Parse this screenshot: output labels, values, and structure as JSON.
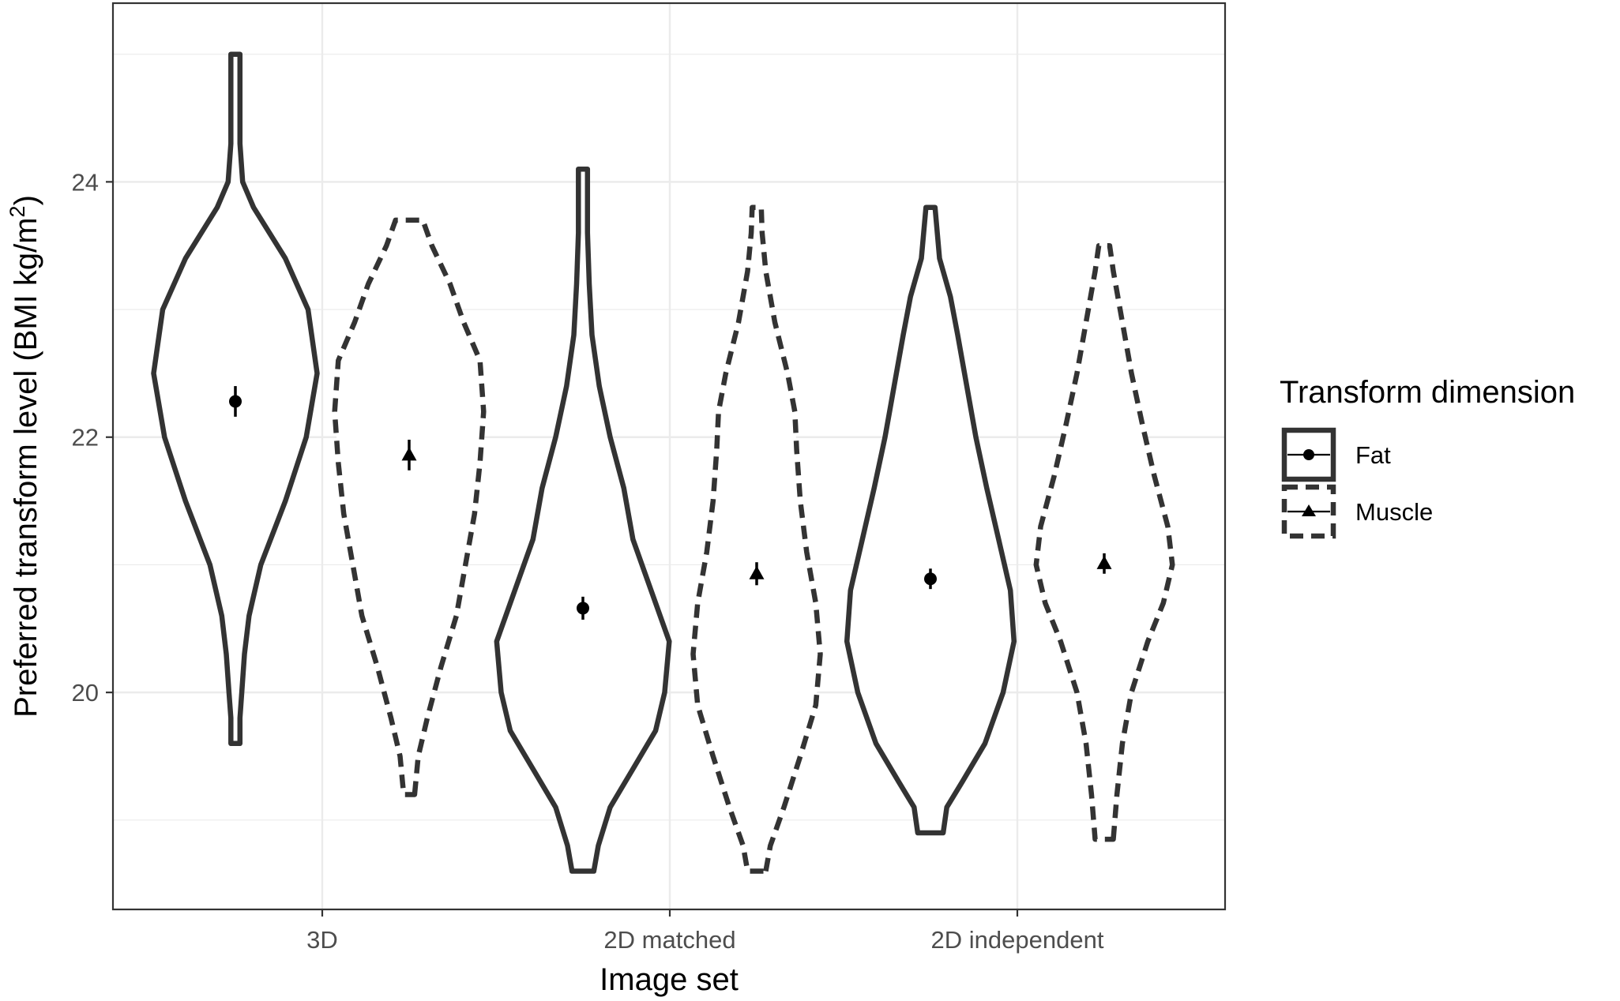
{
  "chart_data": {
    "type": "violin",
    "xlabel": "Image set",
    "ylabel": "Preferred transform level (BMI kg/m",
    "ylabel_superscript": "2",
    "ylabel_suffix": ")",
    "categories": [
      "3D",
      "2D matched",
      "2D independent"
    ],
    "ylim": [
      18.3,
      25.4
    ],
    "y_ticks": [
      20,
      22,
      24
    ],
    "grid": true,
    "legend": {
      "title": "Transform dimension",
      "position": "right",
      "entries": [
        "Fat",
        "Muscle"
      ]
    },
    "colors": {
      "outline": "#333333",
      "grid": "#ebebeb",
      "panel_border": "#333333",
      "point": "#000000"
    },
    "series": [
      {
        "name": "Fat",
        "linestyle": "solid",
        "marker": "circle",
        "means": [
          22.28,
          20.66,
          20.89
        ],
        "errors": [
          0.12,
          0.09,
          0.08
        ],
        "violins": [
          {
            "y": [
              19.6,
              19.8,
              20.0,
              20.3,
              20.6,
              21.0,
              21.5,
              22.0,
              22.5,
              23.0,
              23.4,
              23.8,
              24.0,
              24.3,
              24.7,
              25.0
            ],
            "w": [
              0.05,
              0.05,
              0.07,
              0.1,
              0.15,
              0.28,
              0.55,
              0.78,
              0.9,
              0.8,
              0.55,
              0.2,
              0.08,
              0.05,
              0.05,
              0.05
            ]
          },
          {
            "y": [
              18.6,
              18.8,
              19.1,
              19.4,
              19.7,
              20.0,
              20.4,
              20.8,
              21.2,
              21.6,
              22.0,
              22.4,
              22.8,
              23.2,
              23.6,
              24.1
            ],
            "w": [
              0.12,
              0.17,
              0.3,
              0.55,
              0.8,
              0.9,
              0.95,
              0.75,
              0.55,
              0.45,
              0.3,
              0.18,
              0.1,
              0.07,
              0.05,
              0.05
            ]
          },
          {
            "y": [
              18.9,
              19.1,
              19.3,
              19.6,
              20.0,
              20.4,
              20.8,
              21.2,
              21.6,
              22.0,
              22.4,
              22.8,
              23.1,
              23.4,
              23.8
            ],
            "w": [
              0.14,
              0.18,
              0.35,
              0.6,
              0.8,
              0.92,
              0.88,
              0.75,
              0.62,
              0.5,
              0.4,
              0.3,
              0.22,
              0.1,
              0.05
            ]
          }
        ]
      },
      {
        "name": "Muscle",
        "linestyle": "dashed",
        "marker": "triangle",
        "means": [
          21.86,
          20.93,
          21.01
        ],
        "errors": [
          0.12,
          0.09,
          0.08
        ],
        "violins": [
          {
            "y": [
              19.2,
              19.5,
              19.8,
              20.2,
              20.6,
              21.0,
              21.4,
              21.8,
              22.2,
              22.6,
              22.9,
              23.2,
              23.5,
              23.7
            ],
            "w": [
              0.06,
              0.1,
              0.2,
              0.35,
              0.52,
              0.62,
              0.72,
              0.78,
              0.82,
              0.78,
              0.6,
              0.45,
              0.25,
              0.15
            ]
          },
          {
            "y": [
              18.6,
              18.8,
              19.1,
              19.5,
              19.9,
              20.3,
              20.7,
              21.1,
              21.5,
              21.9,
              22.2,
              22.5,
              22.9,
              23.3,
              23.6,
              23.8
            ],
            "w": [
              0.1,
              0.15,
              0.3,
              0.48,
              0.65,
              0.7,
              0.65,
              0.55,
              0.48,
              0.44,
              0.42,
              0.34,
              0.2,
              0.1,
              0.06,
              0.05
            ]
          },
          {
            "y": [
              18.85,
              19.2,
              19.6,
              20.0,
              20.4,
              20.7,
              21.0,
              21.3,
              21.7,
              22.1,
              22.5,
              22.9,
              23.3,
              23.5
            ],
            "w": [
              0.1,
              0.14,
              0.2,
              0.3,
              0.48,
              0.65,
              0.75,
              0.7,
              0.55,
              0.42,
              0.3,
              0.2,
              0.1,
              0.06
            ]
          }
        ]
      }
    ]
  }
}
